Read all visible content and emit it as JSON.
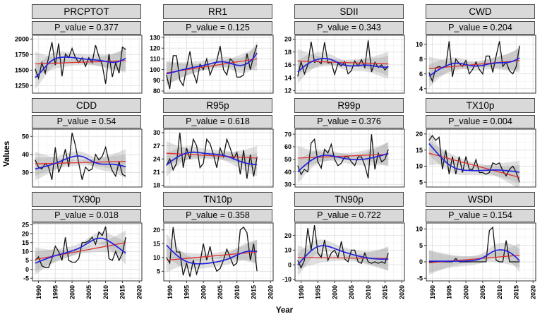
{
  "figure": {
    "values_axis_label": "Values",
    "year_axis_label": "Year"
  },
  "chart_data": {
    "type": "line",
    "title": "",
    "xlabel": "Year",
    "ylabel": "Values",
    "legend": "none",
    "grid": "on",
    "x": [
      1989,
      1990,
      1991,
      1992,
      1993,
      1994,
      1995,
      1996,
      1997,
      1998,
      1999,
      2000,
      2001,
      2002,
      2003,
      2004,
      2005,
      2006,
      2007,
      2008,
      2009,
      2010,
      2011,
      2012,
      2013,
      2014,
      2015,
      2016
    ],
    "xlim": [
      1988.2,
      2020.8
    ],
    "xticks": [
      1990,
      1995,
      2000,
      2005,
      2010,
      2015,
      2020
    ],
    "series_styles": {
      "observed_color": "#141414",
      "loess_color": "#2222dd",
      "trend_color": "#e03030",
      "ribbon_color": "#999999",
      "strip_bg": "#d9d9d9",
      "grid_major": "#e3e3e3",
      "grid_minor": "#f1f1f1"
    },
    "panels": [
      {
        "title": "PRCPTOT",
        "p_label": "P_value = 0.377",
        "ylim": [
          1130,
          2060
        ],
        "yticks": [
          1250,
          1500,
          1750,
          2000
        ],
        "values": [
          1520,
          1370,
          1620,
          1450,
          1700,
          1950,
          1580,
          1930,
          1400,
          1760,
          1700,
          1850,
          1700,
          1620,
          1700,
          1560,
          1700,
          1620,
          1900,
          1720,
          1580,
          1280,
          1760,
          1390,
          1620,
          1450,
          1870,
          1830
        ],
        "smooth": [
          1380,
          1430,
          1490,
          1550,
          1610,
          1655,
          1685,
          1700,
          1708,
          1710,
          1708,
          1703,
          1697,
          1690,
          1684,
          1678,
          1672,
          1667,
          1662,
          1657,
          1650,
          1640,
          1630,
          1624,
          1626,
          1640,
          1662,
          1692
        ],
        "trend": [
          1600,
          1652
        ]
      },
      {
        "title": "RR1",
        "p_label": "P_value = 0.125",
        "ylim": [
          78,
          132
        ],
        "yticks": [
          80,
          90,
          100,
          110,
          120,
          130
        ],
        "values": [
          95,
          82,
          113,
          113,
          90,
          85,
          102,
          117,
          97,
          88,
          105,
          100,
          110,
          95,
          103,
          108,
          122,
          100,
          95,
          110,
          107,
          93,
          93,
          95,
          115,
          100,
          113,
          123
        ],
        "smooth": [
          96,
          96.8,
          97.6,
          98.4,
          99.2,
          100,
          100.7,
          101.4,
          102,
          102.6,
          103.2,
          103.8,
          104.6,
          105.4,
          106.2,
          106.9,
          107.3,
          107.3,
          106.8,
          105.9,
          104.9,
          104.1,
          103.8,
          104.3,
          105.6,
          107.8,
          111,
          115.5
        ],
        "trend": [
          97,
          110
        ]
      },
      {
        "title": "SDII",
        "p_label": "P_value = 0.343",
        "ylim": [
          11.6,
          20.6
        ],
        "yticks": [
          12,
          14,
          16,
          18,
          20
        ],
        "values": [
          14.2,
          16.5,
          14.6,
          16,
          19.6,
          16.4,
          16.6,
          16.2,
          19.5,
          16.3,
          16.4,
          14.5,
          16.2,
          15.8,
          16.5,
          14.6,
          15.1,
          16.6,
          15.8,
          16.8,
          15.6,
          19.8,
          14.9,
          16.4,
          15.6,
          16,
          15.2,
          15.8
        ],
        "smooth": [
          14.9,
          15.35,
          15.8,
          16.15,
          16.45,
          16.7,
          16.87,
          16.97,
          17,
          16.95,
          16.82,
          16.6,
          16.35,
          16.12,
          15.95,
          15.85,
          15.82,
          15.85,
          15.9,
          15.95,
          15.97,
          15.95,
          15.88,
          15.8,
          15.72,
          15.67,
          15.65,
          15.65
        ],
        "trend": [
          16.6,
          16.15
        ]
      },
      {
        "title": "CWD",
        "p_label": "P_value = 0.204",
        "ylim": [
          3.4,
          11.2
        ],
        "yticks": [
          4,
          6,
          8,
          10
        ],
        "values": [
          6.2,
          5,
          6.8,
          7,
          6.8,
          7,
          10.4,
          5.6,
          8,
          7.4,
          7,
          7.8,
          6,
          6.6,
          7.6,
          6.6,
          6,
          8.4,
          8.4,
          6.2,
          8.4,
          10.4,
          7,
          7.6,
          6.4,
          6,
          7,
          9.8
        ],
        "smooth": [
          5.7,
          6,
          6.3,
          6.6,
          6.85,
          7.05,
          7.25,
          7.38,
          7.44,
          7.42,
          7.35,
          7.25,
          7.15,
          7.08,
          7.05,
          7.08,
          7.15,
          7.25,
          7.35,
          7.42,
          7.47,
          7.5,
          7.5,
          7.52,
          7.58,
          7.7,
          7.9,
          8.15
        ],
        "trend": [
          6.7,
          7.8
        ]
      },
      {
        "title": "CDD",
        "p_label": "P_value = 0.54",
        "ylim": [
          22,
          54
        ],
        "yticks": [
          30,
          40,
          50
        ],
        "values": [
          37,
          33,
          32,
          35,
          33,
          26,
          44,
          30,
          35,
          43,
          33,
          52,
          45,
          35,
          26,
          33,
          31,
          32,
          40,
          37,
          39,
          44,
          36,
          31,
          28,
          36,
          29,
          28
        ],
        "smooth": [
          32,
          32.4,
          32.9,
          33.4,
          33.9,
          34.5,
          35.1,
          35.8,
          36.6,
          37.4,
          38.1,
          38.7,
          39.1,
          39.2,
          38.9,
          38.2,
          37.2,
          36.2,
          35.4,
          34.9,
          34.6,
          34.6,
          34.6,
          34.6,
          34.4,
          34.1,
          33.7,
          33.2
        ],
        "trend": [
          34.8,
          36.2
        ]
      },
      {
        "title": "R95p",
        "p_label": "P_value = 0.618",
        "ylim": [
          17.6,
          30.8
        ],
        "yticks": [
          18,
          21,
          24,
          27,
          30
        ],
        "values": [
          22.5,
          24,
          21.5,
          23,
          30,
          22,
          26.5,
          24,
          28.5,
          27,
          22,
          23,
          28.5,
          27.5,
          25,
          22,
          26.5,
          24.5,
          28.5,
          26.5,
          24,
          25.5,
          20.5,
          26,
          19.5,
          25,
          20,
          24.5
        ],
        "smooth": [
          22.6,
          23.2,
          23.8,
          24.3,
          24.75,
          25.1,
          25.35,
          25.5,
          25.55,
          25.5,
          25.42,
          25.32,
          25.22,
          25.15,
          25.1,
          25.05,
          24.95,
          24.8,
          24.6,
          24.35,
          24.05,
          23.75,
          23.45,
          23.2,
          23,
          22.85,
          22.75,
          22.7
        ],
        "trend": [
          25.3,
          24.2
        ]
      },
      {
        "title": "R99p",
        "p_label": "P_value = 0.376",
        "ylim": [
          28,
          74
        ],
        "yticks": [
          30,
          40,
          50,
          60,
          70
        ],
        "values": [
          45,
          38,
          42,
          40,
          63,
          66,
          48,
          43,
          58,
          55,
          62,
          50,
          45,
          47,
          52,
          52,
          48,
          45,
          52,
          52,
          45,
          35,
          70,
          42,
          55,
          48,
          50,
          58
        ],
        "smooth": [
          40,
          42.5,
          45,
          47.2,
          49.2,
          50.8,
          52,
          52.8,
          53.2,
          53.2,
          52.9,
          52.4,
          51.8,
          51.2,
          50.7,
          50.2,
          49.9,
          49.7,
          49.7,
          49.9,
          50.2,
          50.6,
          51.1,
          51.7,
          52.4,
          53.1,
          53.9,
          54.8
        ],
        "trend": [
          51,
          54
        ]
      },
      {
        "title": "TX10p",
        "p_label": "P_value = 0.004",
        "ylim": [
          3.5,
          21.5
        ],
        "yticks": [
          5,
          10,
          15,
          20
        ],
        "values": [
          18,
          19.5,
          18,
          19,
          9,
          15,
          7.5,
          13,
          7.5,
          13,
          8,
          13,
          9,
          9,
          12,
          8,
          8,
          7.5,
          8,
          11,
          10.5,
          11,
          8.5,
          7,
          9,
          10,
          8,
          5
        ],
        "smooth": [
          17,
          15.8,
          14.6,
          13.4,
          12.3,
          11.3,
          10.4,
          9.8,
          9.3,
          9,
          8.8,
          8.7,
          8.65,
          8.6,
          8.6,
          8.6,
          8.65,
          8.7,
          8.75,
          8.8,
          8.8,
          8.78,
          8.7,
          8.6,
          8.5,
          8.4,
          8.25,
          8.1
        ],
        "trend": [
          14,
          6.5
        ]
      },
      {
        "title": "TX90p",
        "p_label": "P_value = 0.018",
        "ylim": [
          -6.5,
          26
        ],
        "yticks": [
          -5,
          0,
          5,
          10,
          15,
          20,
          25
        ],
        "values": [
          5,
          7,
          2,
          1,
          1,
          6,
          13,
          10,
          5,
          18,
          5,
          4,
          4,
          6,
          15,
          15,
          16,
          18,
          14,
          21,
          19,
          24,
          6,
          5,
          10,
          5,
          9,
          18
        ],
        "smooth": [
          3.5,
          4.2,
          5,
          5.7,
          6.4,
          7.1,
          7.7,
          8.2,
          8.7,
          9.2,
          9.7,
          10.3,
          11,
          11.8,
          12.8,
          13.9,
          15.1,
          16.2,
          17.1,
          17.5,
          17.4,
          16.8,
          15.8,
          14.6,
          13.2,
          11.9,
          10.5,
          9.2
        ],
        "trend": [
          5.5,
          15
        ]
      },
      {
        "title": "TN10p",
        "p_label": "P_value = 0.358",
        "ylim": [
          1.5,
          22.5
        ],
        "yticks": [
          5,
          10,
          15,
          20
        ],
        "values": [
          10,
          8,
          21,
          12,
          12,
          3.5,
          8,
          3,
          9,
          4,
          8,
          15,
          9,
          14,
          8,
          5,
          6,
          9,
          13,
          10,
          7,
          8,
          20,
          21,
          19,
          9,
          15,
          5
        ],
        "smooth": [
          14.5,
          13.2,
          12,
          10.9,
          9.9,
          9.1,
          8.5,
          8.1,
          7.8,
          7.7,
          7.7,
          7.75,
          7.85,
          8,
          8.2,
          8.4,
          8.65,
          8.95,
          9.3,
          9.75,
          10.3,
          10.9,
          11.4,
          11.9,
          12.2,
          12.3,
          12.3,
          12.2
        ],
        "trend": [
          9,
          12
        ]
      },
      {
        "title": "TN90p",
        "p_label": "P_value = 0.722",
        "ylim": [
          -11,
          28.5
        ],
        "yticks": [
          -10,
          0,
          10,
          20
        ],
        "values": [
          3,
          -2,
          3,
          25,
          10,
          27,
          8,
          5,
          17,
          3,
          8,
          10,
          5,
          16,
          4,
          2,
          10,
          10,
          2,
          1,
          8,
          2,
          1,
          2,
          1,
          2,
          1,
          8
        ],
        "smooth": [
          0,
          2.5,
          5,
          7.4,
          9.6,
          11.3,
          12.4,
          13,
          13,
          12.6,
          11.9,
          11.1,
          10.2,
          9.4,
          8.6,
          7.9,
          7.2,
          6.6,
          6,
          5.5,
          5,
          4.6,
          4.3,
          4.1,
          3.9,
          3.85,
          3.8,
          3.85
        ],
        "trend": [
          5,
          4.3
        ]
      },
      {
        "title": "WSDI",
        "p_label": "P_value = 0.154",
        "ylim": [
          -5.8,
          11.8
        ],
        "yticks": [
          -5,
          0,
          5,
          10
        ],
        "values": [
          0,
          0,
          0,
          0,
          0,
          0,
          0,
          0,
          1,
          0,
          0,
          0,
          0,
          0,
          0,
          0,
          0,
          0,
          9.5,
          10.5,
          0.5,
          0,
          0,
          6.5,
          0,
          0,
          0,
          0
        ],
        "smooth": [
          0.2,
          0.2,
          0.2,
          0.2,
          0.2,
          0.2,
          0.2,
          0.2,
          0.2,
          0.2,
          0.2,
          0.25,
          0.3,
          0.4,
          0.55,
          0.8,
          1.2,
          1.8,
          2.5,
          3.1,
          3.5,
          3.65,
          3.6,
          3.35,
          2.9,
          2.2,
          1.3,
          0.3
        ],
        "trend": [
          -0.3,
          2
        ]
      }
    ]
  }
}
